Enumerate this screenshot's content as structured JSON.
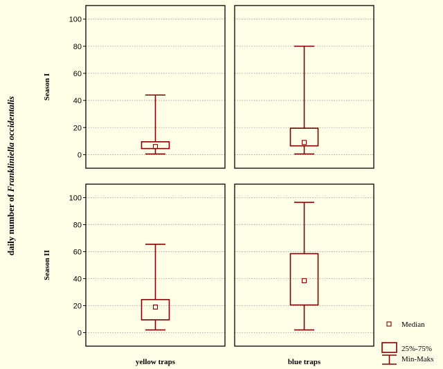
{
  "chart_data": {
    "type": "boxplot",
    "ylabel_prefix": "daily number of ",
    "ylabel_species": "Frankliniella occidentalis",
    "ylim": [
      -10,
      110
    ],
    "yticks": [
      0,
      20,
      40,
      60,
      80,
      100
    ],
    "grid": true,
    "columns": [
      "yellow traps",
      "blue traps"
    ],
    "rows": [
      "Season I",
      "Season II"
    ],
    "panels": [
      [
        {
          "median": 6,
          "q1": 4.5,
          "q3": 9.5,
          "min": 0.5,
          "max": 44
        },
        {
          "median": 9,
          "q1": 6.5,
          "q3": 19.5,
          "min": 0.5,
          "max": 80
        }
      ],
      [
        {
          "median": 19,
          "q1": 9.5,
          "q3": 24.5,
          "min": 2,
          "max": 65.5
        },
        {
          "median": 38.5,
          "q1": 20.5,
          "q3": 58.5,
          "min": 2,
          "max": 96.5
        }
      ]
    ],
    "legend": {
      "median": "Median",
      "box": "25%-75%",
      "whisker": "Min-Maks",
      "position": "bottom-right"
    },
    "colors": {
      "box": "#7F0000",
      "background": "#FFFFE8",
      "grid": "#9A9A9A"
    }
  }
}
